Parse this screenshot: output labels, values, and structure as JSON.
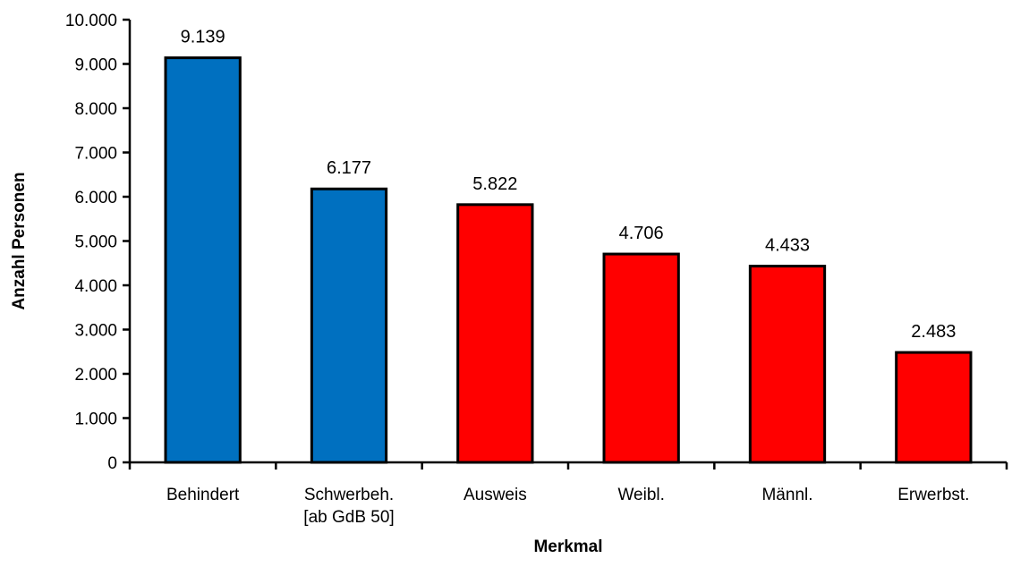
{
  "chart_data": {
    "type": "bar",
    "categories": [
      [
        "Behindert"
      ],
      [
        "Schwerbeh.",
        "[ab GdB 50]"
      ],
      [
        "Ausweis"
      ],
      [
        "Weibl."
      ],
      [
        "Männl."
      ],
      [
        "Erwerbst."
      ]
    ],
    "values": [
      9139,
      6177,
      5822,
      4706,
      4433,
      2483
    ],
    "value_labels": [
      "9.139",
      "6.177",
      "5.822",
      "4.706",
      "4.433",
      "2.483"
    ],
    "bar_colors": [
      "#0070C0",
      "#0070C0",
      "#FF0000",
      "#FF0000",
      "#FF0000",
      "#FF0000"
    ],
    "xlabel": "Merkmal",
    "ylabel": "Anzahl Personen",
    "ylim": [
      0,
      10000
    ],
    "yticks": [
      0,
      1000,
      2000,
      3000,
      4000,
      5000,
      6000,
      7000,
      8000,
      9000,
      10000
    ],
    "ytick_labels": [
      "0",
      "1.000",
      "2.000",
      "3.000",
      "4.000",
      "5.000",
      "6.000",
      "7.000",
      "8.000",
      "9.000",
      "10.000"
    ],
    "grid": false,
    "legend": "none"
  }
}
